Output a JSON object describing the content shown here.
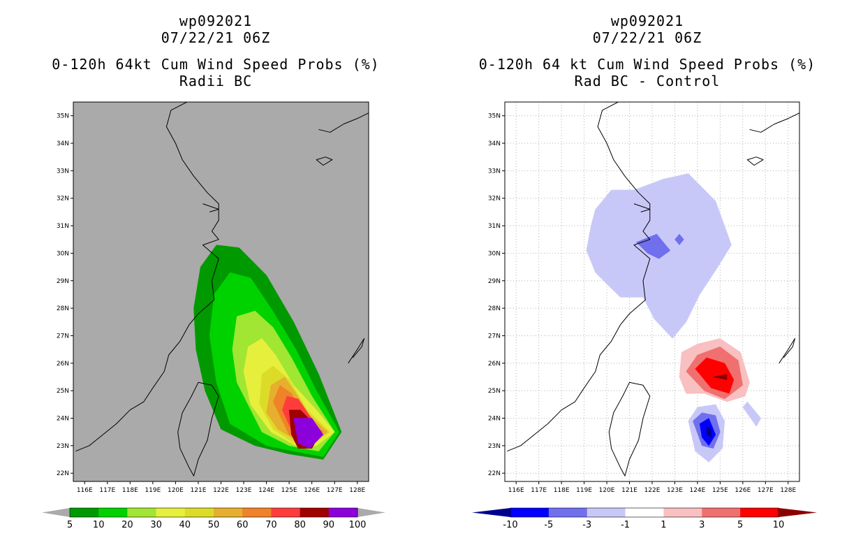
{
  "chart_data": [
    {
      "type": "heatmap",
      "panel": "left",
      "storm_id": "wp092021",
      "datetime": "07/22/21 06Z",
      "title": "0-120h 64kt Cum Wind Speed Probs (%)",
      "subtitle": "Radii BC",
      "xlim": [
        115.5,
        128.5
      ],
      "ylim": [
        21.7,
        35.5
      ],
      "x_ticks": [
        "116E",
        "117E",
        "118E",
        "119E",
        "120E",
        "121E",
        "122E",
        "123E",
        "124E",
        "125E",
        "126E",
        "127E",
        "128E"
      ],
      "y_ticks": [
        "22N",
        "23N",
        "24N",
        "25N",
        "26N",
        "27N",
        "28N",
        "29N",
        "30N",
        "31N",
        "32N",
        "33N",
        "34N",
        "35N"
      ],
      "background_color": "#aaaaaa",
      "colorbar": {
        "labels": [
          "5",
          "10",
          "20",
          "30",
          "40",
          "50",
          "60",
          "70",
          "80",
          "90",
          "100"
        ],
        "colors": [
          "#009a00",
          "#00d200",
          "#a0e632",
          "#e6f03c",
          "#dcdc28",
          "#e6af2d",
          "#f08228",
          "#ff3c3c",
          "#a00000",
          "#8c00dc"
        ],
        "arrow_left": "#aaaaaa",
        "arrow_right": "#aaaaaa"
      },
      "contours": [
        {
          "level": 5,
          "color": "#009a00",
          "polygon": [
            [
              122.0,
              23.6
            ],
            [
              121.3,
              25.0
            ],
            [
              120.9,
              26.5
            ],
            [
              120.8,
              28.0
            ],
            [
              121.1,
              29.5
            ],
            [
              121.8,
              30.3
            ],
            [
              122.8,
              30.2
            ],
            [
              124.0,
              29.2
            ],
            [
              125.2,
              27.5
            ],
            [
              126.3,
              25.6
            ],
            [
              127.3,
              23.5
            ],
            [
              126.5,
              22.5
            ],
            [
              125.0,
              22.7
            ],
            [
              123.5,
              23.0
            ]
          ]
        },
        {
          "level": 10,
          "color": "#00d200",
          "polygon": [
            [
              122.4,
              23.8
            ],
            [
              121.8,
              25.3
            ],
            [
              121.5,
              27.0
            ],
            [
              121.7,
              28.5
            ],
            [
              122.4,
              29.3
            ],
            [
              123.3,
              29.1
            ],
            [
              124.2,
              28.0
            ],
            [
              125.3,
              26.5
            ],
            [
              126.2,
              25.0
            ],
            [
              127.2,
              23.5
            ],
            [
              126.5,
              22.6
            ],
            [
              125.2,
              22.8
            ],
            [
              124.0,
              23.0
            ]
          ]
        },
        {
          "level": 20,
          "color": "#a0e632",
          "polygon": [
            [
              122.7,
              25.3
            ],
            [
              122.5,
              26.5
            ],
            [
              122.7,
              27.7
            ],
            [
              123.5,
              27.9
            ],
            [
              124.3,
              27.3
            ],
            [
              125.1,
              26.2
            ],
            [
              126.0,
              24.8
            ],
            [
              127.0,
              23.5
            ],
            [
              126.3,
              22.8
            ],
            [
              125.0,
              23.0
            ],
            [
              123.8,
              23.5
            ]
          ]
        },
        {
          "level": 30,
          "color": "#e6f03c",
          "polygon": [
            [
              123.0,
              25.7
            ],
            [
              123.2,
              26.6
            ],
            [
              123.8,
              26.9
            ],
            [
              124.4,
              26.3
            ],
            [
              125.2,
              25.2
            ],
            [
              126.2,
              24.3
            ],
            [
              127.0,
              23.5
            ],
            [
              126.2,
              23.0
            ],
            [
              125.3,
              23.0
            ],
            [
              124.2,
              23.5
            ],
            [
              123.3,
              24.5
            ]
          ]
        },
        {
          "level": 40,
          "color": "#dcdc28",
          "polygon": [
            [
              123.7,
              24.5
            ],
            [
              123.8,
              25.6
            ],
            [
              124.3,
              25.9
            ],
            [
              125.0,
              25.4
            ],
            [
              125.8,
              24.3
            ],
            [
              126.8,
              23.5
            ],
            [
              126.0,
              23.0
            ],
            [
              125.2,
              23.1
            ],
            [
              124.3,
              23.6
            ]
          ]
        },
        {
          "level": 50,
          "color": "#e6af2d",
          "polygon": [
            [
              124.0,
              24.2
            ],
            [
              124.2,
              25.2
            ],
            [
              124.8,
              25.5
            ],
            [
              125.3,
              24.9
            ],
            [
              125.9,
              24.1
            ],
            [
              126.7,
              23.5
            ],
            [
              126.0,
              23.1
            ],
            [
              125.3,
              23.2
            ],
            [
              124.5,
              23.6
            ]
          ]
        },
        {
          "level": 60,
          "color": "#f08228",
          "polygon": [
            [
              124.3,
              24.6
            ],
            [
              124.6,
              25.2
            ],
            [
              125.1,
              24.9
            ],
            [
              125.6,
              24.2
            ],
            [
              126.5,
              23.5
            ],
            [
              125.8,
              23.2
            ],
            [
              125.0,
              23.4
            ]
          ]
        },
        {
          "level": 70,
          "color": "#ff3c3c",
          "polygon": [
            [
              124.7,
              24.3
            ],
            [
              124.9,
              24.8
            ],
            [
              125.4,
              24.7
            ],
            [
              125.9,
              24.1
            ],
            [
              126.4,
              23.5
            ],
            [
              126.0,
              23.0
            ],
            [
              125.3,
              23.2
            ]
          ]
        },
        {
          "level": 80,
          "color": "#a00000",
          "polygon": [
            [
              125.0,
              24.3
            ],
            [
              125.5,
              24.3
            ],
            [
              126.1,
              23.8
            ],
            [
              126.4,
              23.5
            ],
            [
              126.0,
              22.9
            ],
            [
              125.4,
              22.9
            ],
            [
              125.1,
              23.4
            ]
          ]
        },
        {
          "level": 90,
          "color": "#8c00dc",
          "polygon": [
            [
              125.2,
              24.0
            ],
            [
              126.0,
              24.0
            ],
            [
              126.5,
              23.4
            ],
            [
              125.9,
              22.9
            ],
            [
              125.4,
              23.1
            ]
          ]
        }
      ]
    },
    {
      "type": "heatmap",
      "panel": "right",
      "storm_id": "wp092021",
      "datetime": "07/22/21 06Z",
      "title": "0-120h 64 kt Cum Wind Speed Probs (%)",
      "subtitle": "Rad BC - Control",
      "xlim": [
        115.5,
        128.5
      ],
      "ylim": [
        21.7,
        35.5
      ],
      "x_ticks": [
        "116E",
        "117E",
        "118E",
        "119E",
        "120E",
        "121E",
        "122E",
        "123E",
        "124E",
        "125E",
        "126E",
        "127E",
        "128E"
      ],
      "y_ticks": [
        "22N",
        "23N",
        "24N",
        "25N",
        "26N",
        "27N",
        "28N",
        "29N",
        "30N",
        "31N",
        "32N",
        "33N",
        "34N",
        "35N"
      ],
      "background_color": "#ffffff",
      "colorbar": {
        "labels": [
          "-10",
          "-5",
          "-3",
          "-1",
          "1",
          "3",
          "5",
          "10"
        ],
        "colors": [
          "#0000ff",
          "#7070ee",
          "#c8c8f8",
          "#ffffff",
          "#f8c0c0",
          "#f07070",
          "#ff0000"
        ],
        "arrow_left": "#00008c",
        "arrow_right": "#8c0000"
      },
      "contours": [
        {
          "level": -1,
          "color": "#c8c8f8",
          "polygon": [
            [
              119.5,
              31.6
            ],
            [
              120.2,
              32.3
            ],
            [
              121.2,
              32.3
            ],
            [
              122.5,
              32.7
            ],
            [
              123.6,
              32.9
            ],
            [
              124.8,
              31.9
            ],
            [
              125.5,
              30.3
            ],
            [
              124.9,
              29.5
            ],
            [
              124.1,
              28.5
            ],
            [
              123.5,
              27.5
            ],
            [
              122.9,
              26.9
            ],
            [
              122.1,
              27.6
            ],
            [
              121.6,
              28.4
            ],
            [
              120.6,
              28.4
            ],
            [
              120.1,
              28.8
            ],
            [
              119.5,
              29.3
            ],
            [
              119.1,
              30.1
            ],
            [
              119.3,
              31.0
            ]
          ]
        },
        {
          "level": -3,
          "color": "#7070ee",
          "polygon": [
            [
              121.3,
              30.4
            ],
            [
              122.2,
              30.7
            ],
            [
              122.8,
              30.1
            ],
            [
              122.3,
              29.8
            ],
            [
              121.8,
              30.0
            ]
          ]
        },
        {
          "level": -3,
          "color": "#7070ee",
          "polygon": [
            [
              123.0,
              30.5
            ],
            [
              123.2,
              30.7
            ],
            [
              123.4,
              30.5
            ],
            [
              123.2,
              30.3
            ]
          ]
        },
        {
          "level": 1,
          "color": "#f8c0c0",
          "polygon": [
            [
              123.2,
              25.5
            ],
            [
              123.3,
              26.4
            ],
            [
              124.0,
              26.7
            ],
            [
              125.0,
              26.9
            ],
            [
              125.9,
              26.4
            ],
            [
              126.3,
              25.3
            ],
            [
              126.1,
              24.8
            ],
            [
              125.3,
              24.6
            ],
            [
              124.3,
              24.9
            ],
            [
              123.5,
              24.9
            ]
          ]
        },
        {
          "level": 3,
          "color": "#f07070",
          "polygon": [
            [
              123.5,
              25.7
            ],
            [
              124.0,
              26.3
            ],
            [
              125.0,
              26.6
            ],
            [
              125.8,
              26.1
            ],
            [
              126.0,
              25.2
            ],
            [
              125.2,
              24.7
            ],
            [
              124.3,
              25.0
            ]
          ]
        },
        {
          "level": 5,
          "color": "#ff0000",
          "polygon": [
            [
              123.9,
              25.8
            ],
            [
              124.4,
              26.2
            ],
            [
              125.2,
              26.0
            ],
            [
              125.6,
              25.4
            ],
            [
              125.4,
              24.9
            ],
            [
              124.6,
              25.1
            ]
          ]
        },
        {
          "level": 10,
          "color": "#8c0000",
          "polygon": [
            [
              124.7,
              25.5
            ],
            [
              125.3,
              25.6
            ],
            [
              125.3,
              25.4
            ]
          ]
        },
        {
          "level": -1,
          "color": "#c8c8f8",
          "polygon": [
            [
              126.2,
              24.6
            ],
            [
              126.8,
              24.0
            ],
            [
              126.6,
              23.7
            ],
            [
              126.0,
              24.4
            ]
          ]
        },
        {
          "level": -1,
          "color": "#c8c8f8",
          "polygon": [
            [
              123.6,
              23.9
            ],
            [
              124.0,
              24.4
            ],
            [
              124.8,
              24.5
            ],
            [
              125.2,
              23.9
            ],
            [
              125.1,
              22.9
            ],
            [
              124.5,
              22.4
            ],
            [
              123.9,
              22.8
            ]
          ]
        },
        {
          "level": -3,
          "color": "#7070ee",
          "polygon": [
            [
              123.8,
              23.9
            ],
            [
              124.2,
              24.2
            ],
            [
              124.8,
              24.1
            ],
            [
              125.0,
              23.5
            ],
            [
              124.7,
              22.9
            ],
            [
              124.2,
              23.0
            ]
          ]
        },
        {
          "level": -5,
          "color": "#0000ff",
          "polygon": [
            [
              124.1,
              23.8
            ],
            [
              124.5,
              24.0
            ],
            [
              124.8,
              23.4
            ],
            [
              124.5,
              23.0
            ],
            [
              124.2,
              23.3
            ]
          ]
        },
        {
          "level": -10,
          "color": "#00008c",
          "polygon": [
            [
              124.4,
              23.7
            ],
            [
              124.6,
              23.6
            ],
            [
              124.6,
              23.3
            ],
            [
              124.4,
              23.4
            ]
          ]
        }
      ]
    }
  ],
  "coastlines": {
    "china_coast": [
      [
        120.5,
        35.5
      ],
      [
        119.8,
        35.2
      ],
      [
        119.6,
        34.6
      ],
      [
        120.0,
        34.0
      ],
      [
        120.3,
        33.4
      ],
      [
        120.8,
        32.8
      ],
      [
        121.4,
        32.2
      ],
      [
        121.9,
        31.8
      ],
      [
        121.9,
        31.2
      ],
      [
        121.6,
        30.8
      ],
      [
        121.9,
        30.5
      ],
      [
        121.2,
        30.3
      ],
      [
        121.9,
        29.8
      ],
      [
        121.6,
        29.0
      ],
      [
        121.7,
        28.3
      ],
      [
        121.0,
        27.8
      ],
      [
        120.6,
        27.4
      ],
      [
        120.2,
        26.8
      ],
      [
        119.7,
        26.3
      ],
      [
        119.5,
        25.7
      ],
      [
        119.0,
        25.1
      ],
      [
        118.6,
        24.6
      ],
      [
        118.0,
        24.3
      ],
      [
        117.4,
        23.8
      ],
      [
        116.8,
        23.4
      ],
      [
        116.2,
        23.0
      ],
      [
        115.6,
        22.8
      ]
    ],
    "taiwan": [
      [
        121.0,
        25.3
      ],
      [
        121.6,
        25.2
      ],
      [
        121.9,
        24.8
      ],
      [
        121.6,
        24.0
      ],
      [
        121.4,
        23.2
      ],
      [
        121.0,
        22.5
      ],
      [
        120.8,
        21.9
      ],
      [
        120.6,
        22.2
      ],
      [
        120.2,
        22.9
      ],
      [
        120.1,
        23.5
      ],
      [
        120.3,
        24.2
      ],
      [
        120.7,
        24.8
      ]
    ],
    "korea": [
      [
        126.3,
        34.5
      ],
      [
        126.8,
        34.4
      ],
      [
        127.4,
        34.7
      ],
      [
        128.0,
        34.9
      ],
      [
        128.5,
        35.1
      ]
    ],
    "jeju": [
      [
        126.2,
        33.4
      ],
      [
        126.6,
        33.5
      ],
      [
        126.9,
        33.4
      ],
      [
        126.5,
        33.2
      ]
    ],
    "ryukyu": [
      [
        127.6,
        26.0
      ],
      [
        128.0,
        26.5
      ],
      [
        128.3,
        26.9
      ],
      [
        128.2,
        26.6
      ],
      [
        127.8,
        26.2
      ]
    ],
    "chongming": [
      [
        121.2,
        31.8
      ],
      [
        121.9,
        31.6
      ],
      [
        121.5,
        31.5
      ]
    ]
  }
}
